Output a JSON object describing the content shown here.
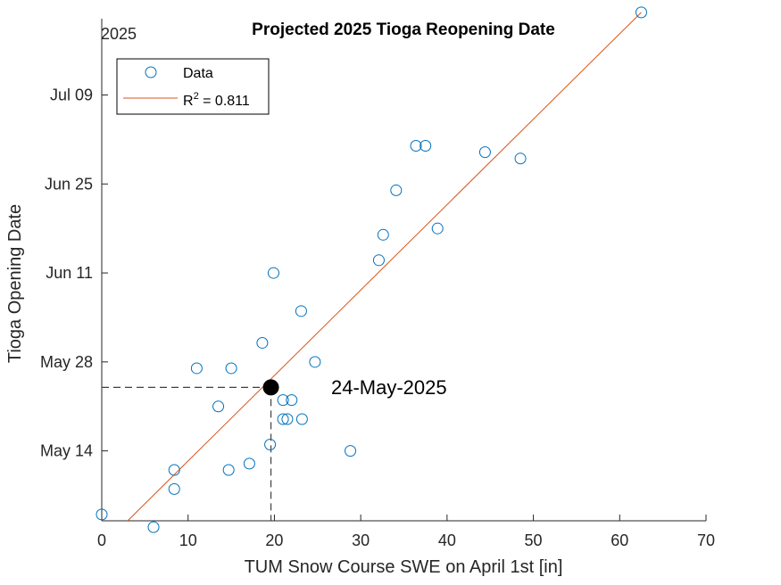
{
  "chart_data": {
    "type": "scatter",
    "title": "Projected 2025 Tioga Reopening Date",
    "xlabel": "TUM Snow Course SWE on April 1st [in]",
    "ylabel": "Tioga Opening Date",
    "year_label": "2025",
    "xlim": [
      0,
      70
    ],
    "ylim": [
      "2025-05-03",
      "2025-07-21"
    ],
    "x_ticks": [
      0,
      10,
      20,
      30,
      40,
      50,
      60,
      70
    ],
    "y_ticks": [
      "2025-05-14",
      "2025-05-28",
      "2025-06-11",
      "2025-06-25",
      "2025-07-09"
    ],
    "y_tick_labels": [
      "May 14",
      "May 28",
      "Jun 11",
      "Jun 25",
      "Jul 09"
    ],
    "grid": false,
    "legend_position": "top-left",
    "series": [
      {
        "name": "Data",
        "marker": "open-circle",
        "color": "#0072BD",
        "points": [
          [
            0.0,
            "2025-05-04"
          ],
          [
            6.0,
            "2025-05-02"
          ],
          [
            8.4,
            "2025-05-11"
          ],
          [
            8.4,
            "2025-05-08"
          ],
          [
            11.0,
            "2025-05-27"
          ],
          [
            13.5,
            "2025-05-21"
          ],
          [
            14.7,
            "2025-05-11"
          ],
          [
            15.0,
            "2025-05-27"
          ],
          [
            17.1,
            "2025-05-12"
          ],
          [
            18.6,
            "2025-05-31"
          ],
          [
            19.5,
            "2025-05-15"
          ],
          [
            19.9,
            "2025-06-11"
          ],
          [
            21.0,
            "2025-05-22"
          ],
          [
            21.0,
            "2025-05-19"
          ],
          [
            21.5,
            "2025-05-19"
          ],
          [
            22.0,
            "2025-05-22"
          ],
          [
            23.1,
            "2025-06-05"
          ],
          [
            23.2,
            "2025-05-19"
          ],
          [
            24.7,
            "2025-05-28"
          ],
          [
            28.8,
            "2025-05-14"
          ],
          [
            32.1,
            "2025-06-13"
          ],
          [
            32.6,
            "2025-06-17"
          ],
          [
            34.1,
            "2025-06-24"
          ],
          [
            36.4,
            "2025-07-01"
          ],
          [
            37.5,
            "2025-07-01"
          ],
          [
            38.9,
            "2025-06-18"
          ],
          [
            44.4,
            "2025-06-30"
          ],
          [
            48.5,
            "2025-06-29"
          ],
          [
            62.5,
            "2025-07-22"
          ]
        ]
      },
      {
        "name": "R² = 0.811",
        "legend_main": "R",
        "legend_sup": "2",
        "legend_rest": " = 0.811",
        "type": "line",
        "color": "#D95319",
        "points": [
          [
            3.0,
            "2025-05-03"
          ],
          [
            62.5,
            "2025-07-22"
          ]
        ]
      }
    ],
    "projection": {
      "x": 19.6,
      "date": "2025-05-24",
      "label": "24-May-2025",
      "color": "#000000"
    }
  }
}
